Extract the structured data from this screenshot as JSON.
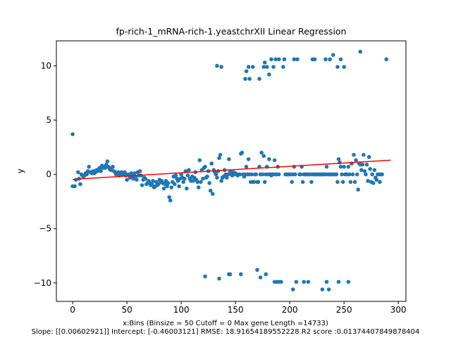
{
  "chart_data": {
    "type": "scatter",
    "title": "fp-rich-1_mRNA-rich-1.yeastchrXII Linear Regression",
    "xlabel": "x:Bins  (Binsize = 50 Cutoff = 0 Max gene Length =14733)",
    "ylabel": "y",
    "footer": "Slope: [[0.00602921]] Intercept: [-0.46003121] RMSE: 18.91654189552228 R2 score :0.01374407849878404",
    "xlim": [
      -15,
      307
    ],
    "ylim": [
      -11.7,
      12.3
    ],
    "xticks": [
      0,
      50,
      100,
      150,
      200,
      250,
      300
    ],
    "yticks": [
      -10,
      -5,
      0,
      5,
      10
    ],
    "point_color": "#1f77b4",
    "line_color": "#ff0000",
    "regression": {
      "slope": 0.00602921,
      "intercept": -0.46003121,
      "x_start": 0,
      "x_end": 293
    },
    "points": [
      [
        0,
        3.7
      ],
      [
        0,
        -1.1
      ],
      [
        2,
        -1.1
      ],
      [
        3,
        -0.5
      ],
      [
        5,
        0.2
      ],
      [
        6,
        -0.4
      ],
      [
        7,
        -0.9
      ],
      [
        8,
        0
      ],
      [
        9,
        -0.1
      ],
      [
        10,
        -0.2
      ],
      [
        11,
        -0.1
      ],
      [
        12,
        0.1
      ],
      [
        13,
        0
      ],
      [
        14,
        0.3
      ],
      [
        15,
        0.7
      ],
      [
        16,
        0.2
      ],
      [
        17,
        0.2
      ],
      [
        18,
        0.1
      ],
      [
        19,
        0.3
      ],
      [
        20,
        0.1
      ],
      [
        21,
        0.2
      ],
      [
        22,
        0.4
      ],
      [
        23,
        0.3
      ],
      [
        24,
        0.5
      ],
      [
        25,
        0.6
      ],
      [
        26,
        0.3
      ],
      [
        27,
        0.8
      ],
      [
        28,
        0.6
      ],
      [
        29,
        0.7
      ],
      [
        30,
        0.6
      ],
      [
        31,
        0.9
      ],
      [
        32,
        1.2
      ],
      [
        33,
        0.7
      ],
      [
        34,
        0.5
      ],
      [
        35,
        0.4
      ],
      [
        36,
        0.6
      ],
      [
        37,
        0.7
      ],
      [
        38,
        0.3
      ],
      [
        39,
        0.2
      ],
      [
        40,
        0
      ],
      [
        41,
        0.1
      ],
      [
        42,
        0.2
      ],
      [
        43,
        -0.1
      ],
      [
        44,
        0.1
      ],
      [
        45,
        0.2
      ],
      [
        46,
        0
      ],
      [
        47,
        0.1
      ],
      [
        48,
        0.2
      ],
      [
        49,
        -0.1
      ],
      [
        50,
        -0.5
      ],
      [
        51,
        0
      ],
      [
        52,
        -0.1
      ],
      [
        53,
        -0.3
      ],
      [
        54,
        0.1
      ],
      [
        55,
        -0.2
      ],
      [
        56,
        -0.4
      ],
      [
        57,
        0.1
      ],
      [
        58,
        -0.2
      ],
      [
        59,
        -0.5
      ],
      [
        60,
        0.2
      ],
      [
        61,
        -0.1
      ],
      [
        62,
        0.3
      ],
      [
        63,
        -0.1
      ],
      [
        64,
        -1
      ],
      [
        65,
        -0.5
      ],
      [
        66,
        -0.3
      ],
      [
        67,
        -0.4
      ],
      [
        68,
        -0.9
      ],
      [
        69,
        -0.8
      ],
      [
        70,
        -0.6
      ],
      [
        71,
        -0.8
      ],
      [
        72,
        -1
      ],
      [
        73,
        -0.9
      ],
      [
        74,
        -0.6
      ],
      [
        75,
        -1.2
      ],
      [
        76,
        -1.1
      ],
      [
        77,
        -0.7
      ],
      [
        78,
        -1
      ],
      [
        79,
        -0.9
      ],
      [
        80,
        -0.5
      ],
      [
        81,
        -0.7
      ],
      [
        82,
        -0.6
      ],
      [
        83,
        -0.8
      ],
      [
        84,
        -1.3
      ],
      [
        85,
        -0.9
      ],
      [
        86,
        -0.6
      ],
      [
        87,
        -1.1
      ],
      [
        88,
        -0.8
      ],
      [
        89,
        -2.1
      ],
      [
        90,
        -2.4
      ],
      [
        91,
        -1.2
      ],
      [
        92,
        -0.7
      ],
      [
        93,
        -0.2
      ],
      [
        94,
        -0.9
      ],
      [
        95,
        -0.1
      ],
      [
        96,
        -0.4
      ],
      [
        97,
        -0.6
      ],
      [
        98,
        -1.1
      ],
      [
        99,
        -0.4
      ],
      [
        100,
        0
      ],
      [
        101,
        -0.3
      ],
      [
        102,
        -0.7
      ],
      [
        103,
        -0.4
      ],
      [
        104,
        0.3
      ],
      [
        105,
        -1.3
      ],
      [
        106,
        -0.1
      ],
      [
        107,
        0.4
      ],
      [
        108,
        -0.4
      ],
      [
        109,
        -0.6
      ],
      [
        110,
        -0.2
      ],
      [
        111,
        -0.6
      ],
      [
        112,
        -0.3
      ],
      [
        113,
        0.2
      ],
      [
        114,
        -0.5
      ],
      [
        115,
        -0.7
      ],
      [
        116,
        -1.2
      ],
      [
        117,
        1.3
      ],
      [
        118,
        -0.7
      ],
      [
        119,
        0.4
      ],
      [
        120,
        -0.4
      ],
      [
        121,
        0.6
      ],
      [
        122,
        0.7
      ],
      [
        123,
        -0.3
      ],
      [
        124,
        -0.2
      ],
      [
        125,
        0.3
      ],
      [
        126,
        -0.8
      ],
      [
        127,
        -1.5
      ],
      [
        128,
        1
      ],
      [
        129,
        -1.8
      ],
      [
        130,
        0.4
      ],
      [
        131,
        0.2
      ],
      [
        132,
        0
      ],
      [
        133,
        -0.3
      ],
      [
        134,
        0.3
      ],
      [
        135,
        1.5
      ],
      [
        136,
        1.8
      ],
      [
        137,
        -0.6
      ],
      [
        138,
        -0.3
      ],
      [
        139,
        -0.2
      ],
      [
        140,
        0.4
      ],
      [
        141,
        0
      ],
      [
        142,
        -0.3
      ],
      [
        143,
        0
      ],
      [
        144,
        1.4
      ],
      [
        145,
        0.3
      ],
      [
        146,
        0
      ],
      [
        147,
        -0.1
      ],
      [
        148,
        0.2
      ],
      [
        149,
        0
      ],
      [
        150,
        0.1
      ],
      [
        151,
        0
      ],
      [
        152,
        -0.1
      ],
      [
        153,
        0
      ],
      [
        154,
        0
      ],
      [
        155,
        1.9
      ],
      [
        156,
        2
      ],
      [
        157,
        0
      ],
      [
        158,
        -0.2
      ],
      [
        159,
        0
      ],
      [
        160,
        0.7
      ],
      [
        161,
        0
      ],
      [
        162,
        1.4
      ],
      [
        163,
        0
      ],
      [
        164,
        -0.7
      ],
      [
        165,
        0
      ],
      [
        166,
        -0.7
      ],
      [
        167,
        -0.7
      ],
      [
        168,
        0
      ],
      [
        169,
        0
      ],
      [
        170,
        -0.7
      ],
      [
        171,
        -0.7
      ],
      [
        172,
        0.7
      ],
      [
        173,
        0
      ],
      [
        174,
        2
      ],
      [
        175,
        0
      ],
      [
        176,
        1.7
      ],
      [
        177,
        -0.7
      ],
      [
        178,
        0
      ],
      [
        179,
        0.7
      ],
      [
        180,
        0
      ],
      [
        181,
        1.4
      ],
      [
        182,
        0
      ],
      [
        183,
        -0.1
      ],
      [
        184,
        0
      ],
      [
        185,
        0
      ],
      [
        186,
        1.3
      ],
      [
        187,
        0
      ],
      [
        188,
        0
      ],
      [
        189,
        0.7
      ],
      [
        190,
        0
      ],
      [
        196,
        0
      ],
      [
        197,
        0
      ],
      [
        198,
        0
      ],
      [
        199,
        0
      ],
      [
        200,
        0
      ],
      [
        201,
        0
      ],
      [
        202,
        -0.7
      ],
      [
        203,
        0
      ],
      [
        204,
        0.7
      ],
      [
        205,
        0
      ],
      [
        209,
        0
      ],
      [
        210,
        0
      ],
      [
        211,
        0.7
      ],
      [
        212,
        -0.7
      ],
      [
        213,
        0
      ],
      [
        214,
        0
      ],
      [
        215,
        0
      ],
      [
        216,
        0
      ],
      [
        217,
        0
      ],
      [
        218,
        0
      ],
      [
        219,
        0
      ],
      [
        220,
        -0.7
      ],
      [
        221,
        0
      ],
      [
        222,
        0
      ],
      [
        223,
        0
      ],
      [
        224,
        0
      ],
      [
        225,
        0
      ],
      [
        226,
        0
      ],
      [
        227,
        0
      ],
      [
        228,
        0
      ],
      [
        229,
        0
      ],
      [
        230,
        0
      ],
      [
        231,
        0
      ],
      [
        232,
        0
      ],
      [
        233,
        0
      ],
      [
        234,
        0.7
      ],
      [
        235,
        0
      ],
      [
        236,
        0
      ],
      [
        237,
        0
      ],
      [
        238,
        0
      ],
      [
        239,
        0
      ],
      [
        240,
        0
      ],
      [
        241,
        0
      ],
      [
        242,
        0
      ],
      [
        243,
        0
      ],
      [
        244,
        -0.7
      ],
      [
        245,
        1.4
      ],
      [
        246,
        1.1
      ],
      [
        247,
        0.7
      ],
      [
        248,
        0
      ],
      [
        249,
        -0.7
      ],
      [
        250,
        0.7
      ],
      [
        251,
        0
      ],
      [
        252,
        0
      ],
      [
        253,
        0
      ],
      [
        254,
        0.7
      ],
      [
        255,
        0
      ],
      [
        256,
        -0.7
      ],
      [
        257,
        1
      ],
      [
        258,
        0
      ],
      [
        259,
        1.8
      ],
      [
        260,
        -0.7
      ],
      [
        261,
        1.3
      ],
      [
        262,
        0
      ],
      [
        263,
        -1.4
      ],
      [
        264,
        1
      ],
      [
        265,
        0.9
      ],
      [
        266,
        0.4
      ],
      [
        267,
        0.9
      ],
      [
        268,
        1.8
      ],
      [
        269,
        0.3
      ],
      [
        270,
        0
      ],
      [
        271,
        0.9
      ],
      [
        272,
        -0.6
      ],
      [
        273,
        1.6
      ],
      [
        274,
        0.5
      ],
      [
        275,
        -0.7
      ],
      [
        276,
        0
      ],
      [
        277,
        -0.8
      ],
      [
        278,
        0.4
      ],
      [
        279,
        -0.3
      ],
      [
        280,
        -0.5
      ],
      [
        281,
        0
      ],
      [
        282,
        0
      ],
      [
        283,
        -0.7
      ],
      [
        284,
        0
      ],
      [
        285,
        0
      ],
      [
        133,
        10
      ],
      [
        137,
        9.9
      ],
      [
        159,
        8.8
      ],
      [
        160,
        9.5
      ],
      [
        162,
        9.9
      ],
      [
        163,
        8.8
      ],
      [
        166,
        9.9
      ],
      [
        172,
        8.8
      ],
      [
        176,
        9.9
      ],
      [
        177,
        10.3
      ],
      [
        179,
        9.9
      ],
      [
        181,
        9.2
      ],
      [
        183,
        10.6
      ],
      [
        185,
        9.9
      ],
      [
        187,
        10.6
      ],
      [
        190,
        10.6
      ],
      [
        194,
        9.9
      ],
      [
        195,
        10.6
      ],
      [
        204,
        10.6
      ],
      [
        207,
        10.6
      ],
      [
        221,
        10.6
      ],
      [
        223,
        10.6
      ],
      [
        233,
        10.6
      ],
      [
        237,
        10.6
      ],
      [
        240,
        11
      ],
      [
        244,
        9.9
      ],
      [
        247,
        10.6
      ],
      [
        250,
        9.9
      ],
      [
        265,
        11.3
      ],
      [
        289,
        10.6
      ],
      [
        122,
        -9.4
      ],
      [
        135,
        -9.6
      ],
      [
        144,
        -9.2
      ],
      [
        145,
        -9.2
      ],
      [
        155,
        -9.2
      ],
      [
        170,
        -8.8
      ],
      [
        173,
        -9.5
      ],
      [
        178,
        -9.2
      ],
      [
        186,
        -9.9
      ],
      [
        188,
        -9.9
      ],
      [
        190,
        -9.9
      ],
      [
        192,
        -9.9
      ],
      [
        203,
        -10.6
      ],
      [
        206,
        -9.9
      ],
      [
        213,
        -9.9
      ],
      [
        217,
        -9.9
      ],
      [
        230,
        -10.6
      ],
      [
        234,
        -9.9
      ],
      [
        236,
        -10.6
      ],
      [
        245,
        -9.9
      ],
      [
        254,
        -9.9
      ]
    ]
  }
}
